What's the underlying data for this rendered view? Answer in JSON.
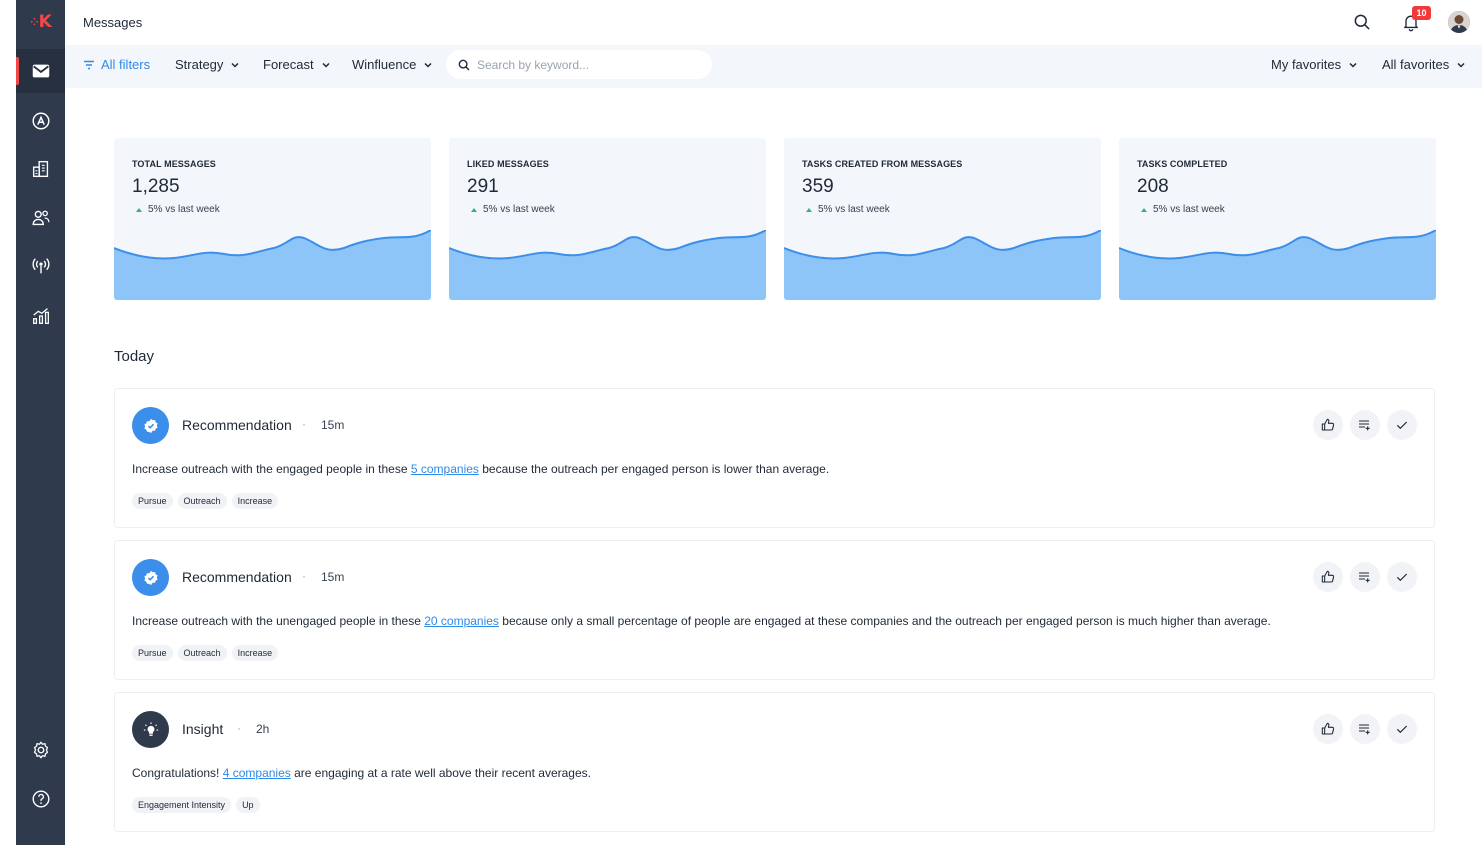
{
  "app": {
    "logo_text": "K",
    "page_title": "Messages",
    "notifications_count": "10"
  },
  "sidebar": {
    "items": [
      {
        "name": "messages",
        "icon": "mail-icon",
        "active": true
      },
      {
        "name": "accounts",
        "icon": "letter-a-circle-icon",
        "active": false
      },
      {
        "name": "companies",
        "icon": "building-icon",
        "active": false
      },
      {
        "name": "people",
        "icon": "people-icon",
        "active": false
      },
      {
        "name": "signals",
        "icon": "broadcast-icon",
        "active": false
      },
      {
        "name": "analytics",
        "icon": "chart-icon",
        "active": false
      }
    ],
    "bottom": [
      {
        "name": "settings",
        "icon": "gear-icon"
      },
      {
        "name": "help",
        "icon": "help-icon"
      }
    ]
  },
  "filters": {
    "all_filters": "All filters",
    "strategy": "Strategy",
    "forecast": "Forecast",
    "winfluence": "Winfluence",
    "search_placeholder": "Search by keyword...",
    "search_value": "",
    "my_favorites": "My favorites",
    "all_favorites": "All favorites"
  },
  "stats": [
    {
      "label": "TOTAL MESSAGES",
      "value": "1,285",
      "change": "5% vs last week"
    },
    {
      "label": "LIKED MESSAGES",
      "value": "291",
      "change": "5% vs last week"
    },
    {
      "label": "TASKS CREATED FROM MESSAGES",
      "value": "359",
      "change": "5% vs last week"
    },
    {
      "label": "TASKS COMPLETED",
      "value": "208",
      "change": "5% vs last week"
    }
  ],
  "colors": {
    "sidebar": "#2f3a4d",
    "accent_blue": "#2f8ae8",
    "wave_fill": "#8ec5f8",
    "wave_stroke": "#3b8eea",
    "trend_up": "#34b37a",
    "badge": "#ef3b3b"
  },
  "feed": {
    "section_title": "Today",
    "dot": "·",
    "messages": [
      {
        "type": "Recommendation",
        "icon": "check-badge-icon",
        "time": "15m",
        "text_before": "Increase outreach with the engaged people in these ",
        "link": "5 companies",
        "text_after": " because the outreach per engaged person is lower than average.",
        "tags": [
          "Pursue",
          "Outreach",
          "Increase"
        ]
      },
      {
        "type": "Recommendation",
        "icon": "check-badge-icon",
        "time": "15m",
        "text_before": "Increase outreach with the unengaged people in these ",
        "link": "20 companies",
        "text_after": " because only a small percentage of people are engaged at these companies and the outreach per engaged person is much higher than average.",
        "tags": [
          "Pursue",
          "Outreach",
          "Increase"
        ]
      },
      {
        "type": "Insight",
        "icon": "lightbulb-icon",
        "time": "2h",
        "text_before": "Congratulations! ",
        "link": "4 companies",
        "text_after": " are engaging at a rate well above their recent averages.",
        "tags": [
          "Engagement Intensity",
          "Up"
        ]
      }
    ]
  }
}
